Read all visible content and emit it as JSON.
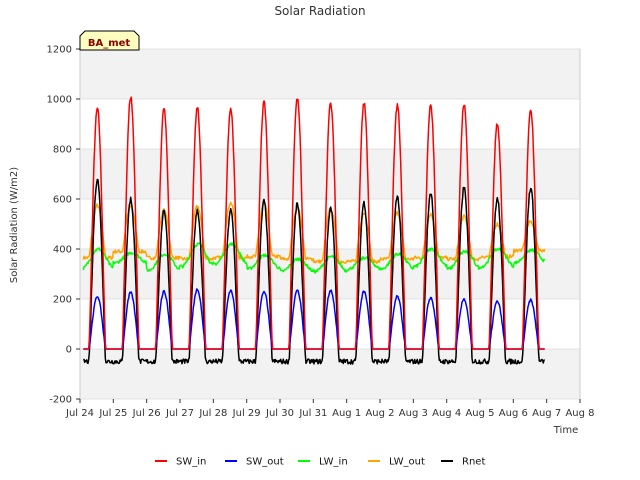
{
  "chart_data": {
    "type": "line",
    "title": "Solar Radiation",
    "xlabel": "Time",
    "ylabel": "Solar Radiation (W/m2)",
    "badge": "BA_met",
    "ylim": [
      -200,
      1200
    ],
    "yticks": [
      -200,
      0,
      200,
      400,
      600,
      800,
      1000,
      1200
    ],
    "xlim": [
      0,
      15
    ],
    "xticks": [
      0,
      1,
      2,
      3,
      4,
      5,
      6,
      7,
      8,
      9,
      10,
      11,
      12,
      13,
      14,
      15
    ],
    "xtick_labels": [
      "Jul 24",
      "Jul 25",
      "Jul 26",
      "Jul 27",
      "Jul 28",
      "Jul 29",
      "Jul 30",
      "Jul 31",
      "Aug 1",
      "Aug 2",
      "Aug 3",
      "Aug 4",
      "Aug 5",
      "Aug 6",
      "Aug 7",
      "Aug 8"
    ],
    "x_units": "days since Jul 24",
    "grid": "horizontal bands",
    "legend_position": "bottom",
    "days": [
      "Jul 24",
      "Jul 25",
      "Jul 26",
      "Jul 27",
      "Jul 28",
      "Jul 29",
      "Jul 30",
      "Jul 31",
      "Aug 1",
      "Aug 2",
      "Aug 3",
      "Aug 4",
      "Aug 5",
      "Aug 6"
    ],
    "series": [
      {
        "name": "SW_in",
        "color": "#ff0000",
        "daily_peak": [
          965,
          1010,
          960,
          965,
          965,
          990,
          1005,
          985,
          985,
          975,
          975,
          980,
          900,
          955
        ]
      },
      {
        "name": "SW_out",
        "color": "#0000ff",
        "daily_peak": [
          210,
          225,
          230,
          240,
          235,
          230,
          235,
          235,
          230,
          210,
          205,
          200,
          190,
          195
        ]
      },
      {
        "name": "LW_in",
        "color": "#00ff00",
        "daily_min": [
          320,
          345,
          315,
          330,
          340,
          320,
          310,
          310,
          320,
          320,
          330,
          320,
          330,
          345
        ],
        "daily_max": [
          400,
          385,
          380,
          420,
          420,
          375,
          360,
          370,
          365,
          380,
          400,
          390,
          400,
          395
        ]
      },
      {
        "name": "LW_out",
        "color": "#ffa500",
        "daily_min": [
          365,
          390,
          365,
          360,
          365,
          370,
          360,
          350,
          350,
          360,
          365,
          360,
          370,
          395
        ],
        "daily_max": [
          575,
          570,
          555,
          570,
          585,
          580,
          565,
          560,
          545,
          545,
          540,
          530,
          500,
          510
        ]
      },
      {
        "name": "Rnet",
        "color": "#000000",
        "daily_peak": [
          680,
          600,
          555,
          555,
          555,
          590,
          580,
          565,
          585,
          610,
          625,
          645,
          600,
          645
        ],
        "night_value": -50
      }
    ]
  }
}
